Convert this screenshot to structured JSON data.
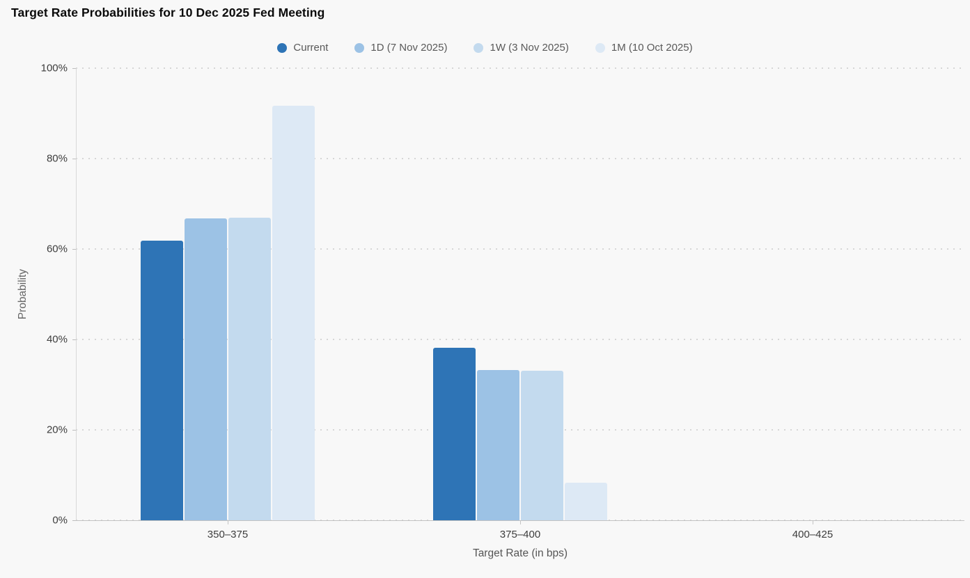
{
  "page": {
    "background": "#f8f8f8"
  },
  "header": {
    "title": "Target Rate Probabilities for 10 Dec 2025 Fed Meeting"
  },
  "chart_data": {
    "type": "bar",
    "title": "Target Rate Probabilities for 10 Dec 2025 Fed Meeting",
    "xlabel": "Target Rate (in bps)",
    "ylabel": "Probability",
    "ylim": [
      0,
      100
    ],
    "yticks": [
      0,
      20,
      40,
      60,
      80,
      100
    ],
    "ytick_labels": [
      "0%",
      "20%",
      "40%",
      "60%",
      "80%",
      "100%"
    ],
    "grid": "horizontal-dotted",
    "legend_position": "top-center",
    "categories": [
      "350–375",
      "375–400",
      "400–425"
    ],
    "series": [
      {
        "name": "Current",
        "color": "#2e74b6",
        "values": [
          61.8,
          38.2,
          0
        ]
      },
      {
        "name": "1D (7 Nov 2025)",
        "color": "#9cc2e5",
        "values": [
          66.8,
          33.2,
          0
        ]
      },
      {
        "name": "1W (3 Nov 2025)",
        "color": "#c3daee",
        "values": [
          66.9,
          33.1,
          0
        ]
      },
      {
        "name": "1M (10 Oct 2025)",
        "color": "#dde9f5",
        "values": [
          91.7,
          8.3,
          0
        ]
      }
    ]
  }
}
